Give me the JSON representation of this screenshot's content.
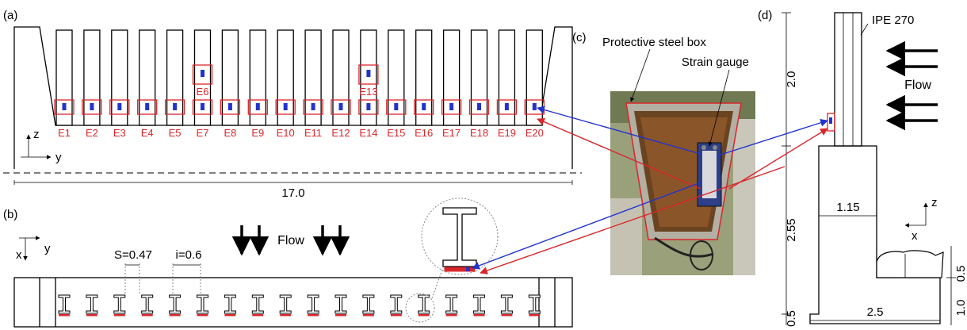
{
  "panels": {
    "a": "(a)",
    "b": "(b)",
    "c": "(c)",
    "d": "(d)"
  },
  "panel_a": {
    "gauge_labels": [
      "E1",
      "E2",
      "E3",
      "E4",
      "E5",
      "E7",
      "E8",
      "E9",
      "E10",
      "E11",
      "E12",
      "E14",
      "E15",
      "E16",
      "E17",
      "E18",
      "E19",
      "E20"
    ],
    "upper_gauge_labels": [
      "E6",
      "E13"
    ],
    "axis_z": "z",
    "axis_y": "y",
    "dimension": "17.0"
  },
  "panel_b": {
    "spacing_s": "S=0.47",
    "spacing_i": "i=0.6",
    "flow": "Flow",
    "axis_x": "x",
    "axis_y": "y"
  },
  "panel_c": {
    "box_label": "Protective steel box",
    "gauge_label": "Strain gauge"
  },
  "panel_d": {
    "profile": "IPE 270",
    "flow": "Flow",
    "dim_2_0": "2.0",
    "dim_2_55": "2.55",
    "dim_1_15": "1.15",
    "dim_2_5": "2.5",
    "dim_0_5_right": "0.5",
    "dim_1_0": "1.0",
    "dim_0_5_left": "0.5",
    "axis_z": "z",
    "axis_x": "x"
  },
  "colors": {
    "gauge_frame": "#d9262b",
    "gauge_inner": "#2233d0",
    "arrow_red": "#d9262b",
    "arrow_blue": "#2233d0"
  }
}
